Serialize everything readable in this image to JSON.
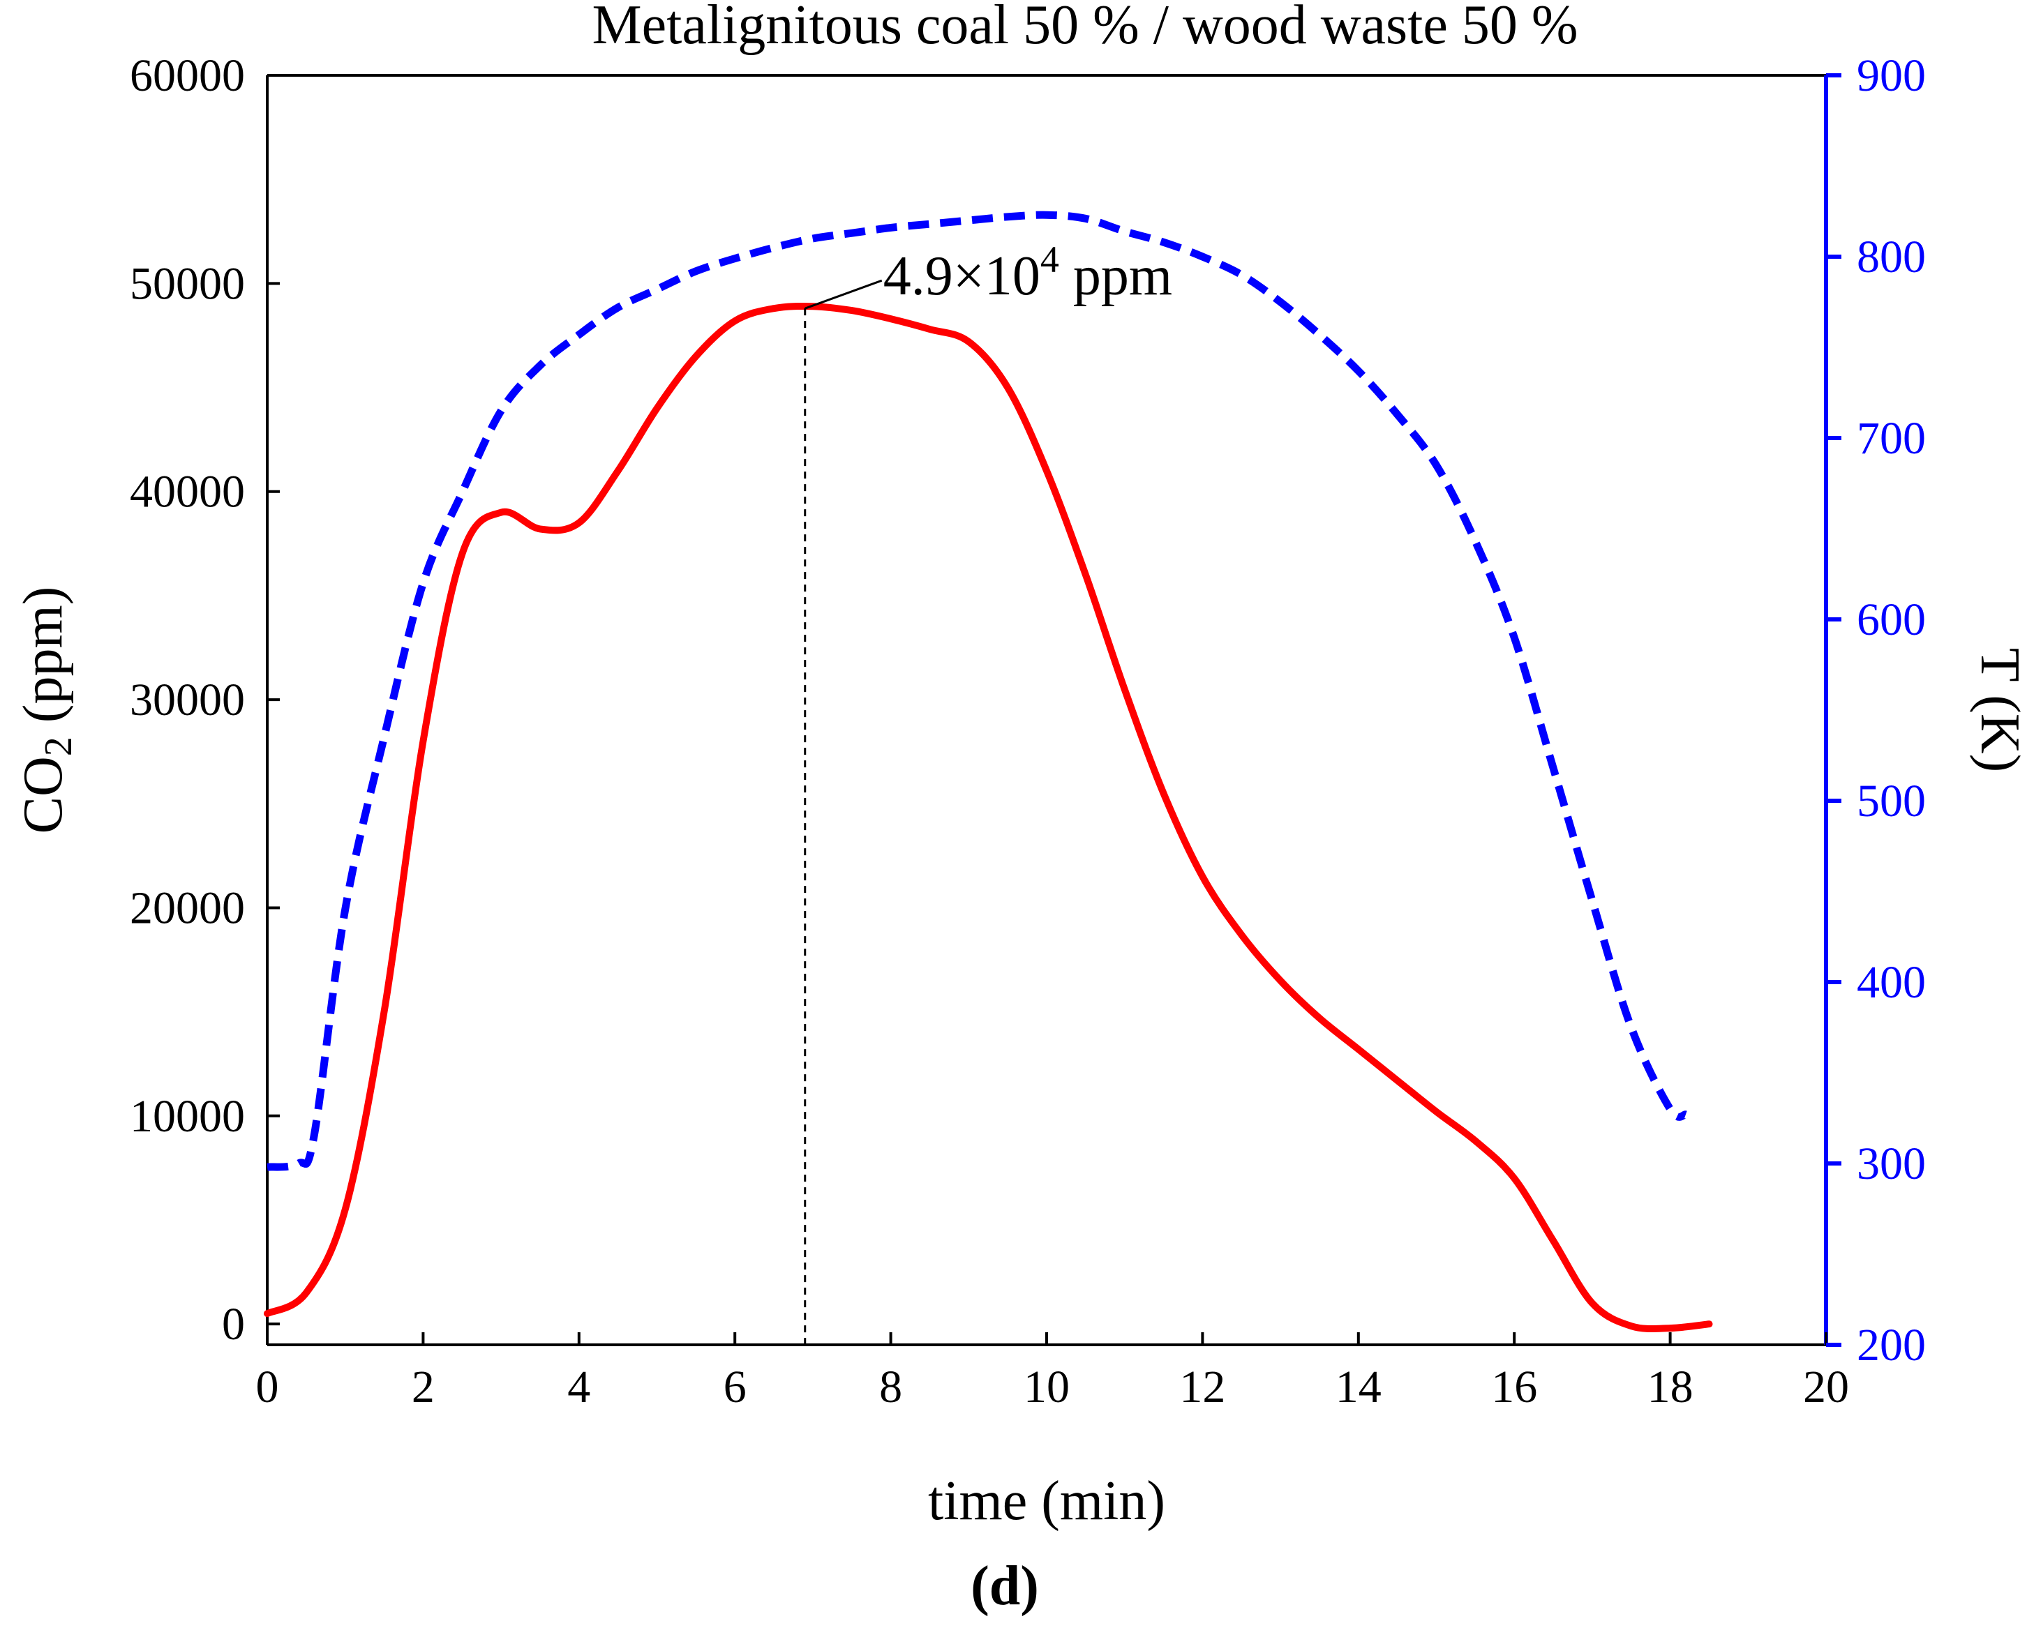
{
  "chart_data": {
    "type": "line",
    "title": "Metalignitous coal 50 % / wood waste 50 %",
    "panel_label": "(d)",
    "xlabel": "time (min)",
    "ylabel_left": "CO2 (ppm)",
    "ylabel_right": "T (K)",
    "xlim": [
      0,
      20
    ],
    "ylim_left": [
      -1000,
      60000
    ],
    "ylim_right": [
      200,
      900
    ],
    "x_ticks": [
      0,
      2,
      4,
      6,
      8,
      10,
      12,
      14,
      16,
      18,
      20
    ],
    "y_left_ticks": [
      0,
      10000,
      20000,
      30000,
      40000,
      50000,
      60000
    ],
    "y_right_ticks": [
      200,
      300,
      400,
      500,
      600,
      700,
      800,
      900
    ],
    "grid": false,
    "series": [
      {
        "name": "CO2",
        "axis": "left",
        "color": "#ff0000",
        "style": "solid",
        "x": [
          0,
          0.5,
          1.0,
          1.5,
          2.0,
          2.5,
          3.0,
          3.5,
          4.0,
          4.5,
          5.0,
          5.5,
          6.0,
          6.5,
          7.0,
          7.5,
          8.0,
          8.5,
          9.0,
          9.5,
          10.0,
          10.5,
          11.0,
          11.5,
          12.0,
          12.5,
          13.0,
          13.5,
          14.0,
          14.5,
          15.0,
          15.5,
          16.0,
          16.5,
          17.0,
          17.5,
          18.0,
          18.5
        ],
        "values": [
          500,
          1500,
          5500,
          15000,
          28000,
          37000,
          39000,
          38200,
          38500,
          41000,
          44000,
          46500,
          48200,
          48800,
          48900,
          48700,
          48300,
          47800,
          47200,
          45000,
          41000,
          36000,
          30500,
          25500,
          21500,
          18700,
          16500,
          14700,
          13200,
          11700,
          10200,
          8800,
          7000,
          4000,
          1000,
          -100,
          -200,
          0
        ]
      },
      {
        "name": "T",
        "axis": "right",
        "color": "#0000ff",
        "style": "dashed",
        "x": [
          0,
          0.4,
          0.6,
          1.0,
          1.5,
          2.0,
          2.5,
          3.0,
          3.5,
          4.0,
          4.5,
          5.0,
          5.5,
          6.0,
          6.5,
          7.0,
          7.5,
          8.0,
          8.5,
          9.0,
          9.5,
          10.0,
          10.5,
          11.0,
          11.5,
          12.0,
          12.5,
          13.0,
          13.5,
          14.0,
          14.5,
          15.0,
          15.5,
          16.0,
          16.5,
          17.0,
          17.5,
          18.0,
          18.2
        ],
        "values": [
          298,
          300,
          315,
          440,
          535,
          620,
          670,
          715,
          740,
          757,
          772,
          782,
          792,
          799,
          805,
          810,
          813,
          816,
          818,
          820,
          822,
          823,
          821,
          814,
          808,
          800,
          790,
          775,
          757,
          737,
          713,
          685,
          643,
          590,
          518,
          445,
          375,
          330,
          327
        ]
      }
    ],
    "annotations": [
      {
        "text_main": "4.9×10",
        "text_sup": "4",
        "text_unit": " ppm",
        "x": 6.9,
        "y": 48800
      }
    ]
  }
}
